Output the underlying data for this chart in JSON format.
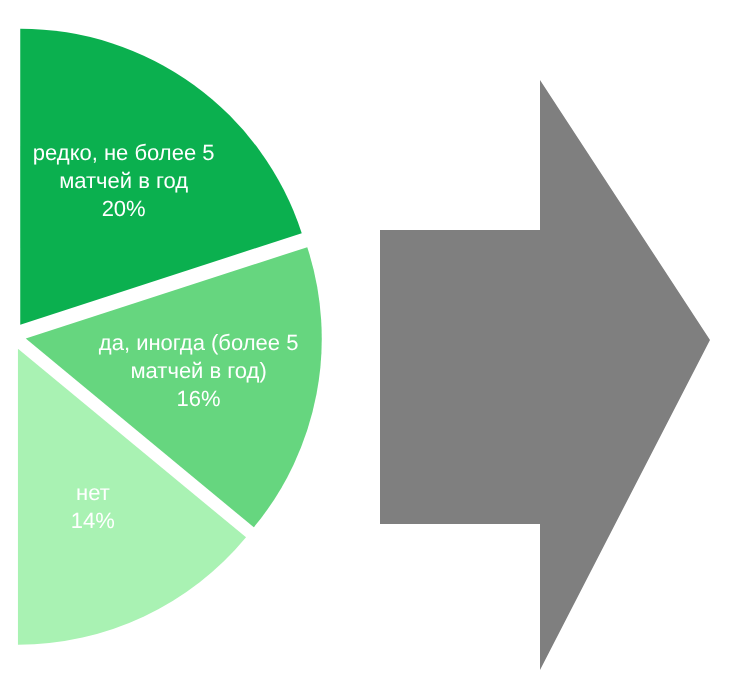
{
  "chart_data": {
    "type": "pie",
    "categories": [
      "редко, не более 5 матчей в год",
      "да, иногда (более 5 матчей в год)",
      "нет"
    ],
    "values": [
      20,
      16,
      14
    ],
    "value_labels": [
      "20%",
      "16%",
      "14%"
    ],
    "colors": [
      "#0bb04f",
      "#66d67f",
      "#a9f2b3"
    ]
  }
}
